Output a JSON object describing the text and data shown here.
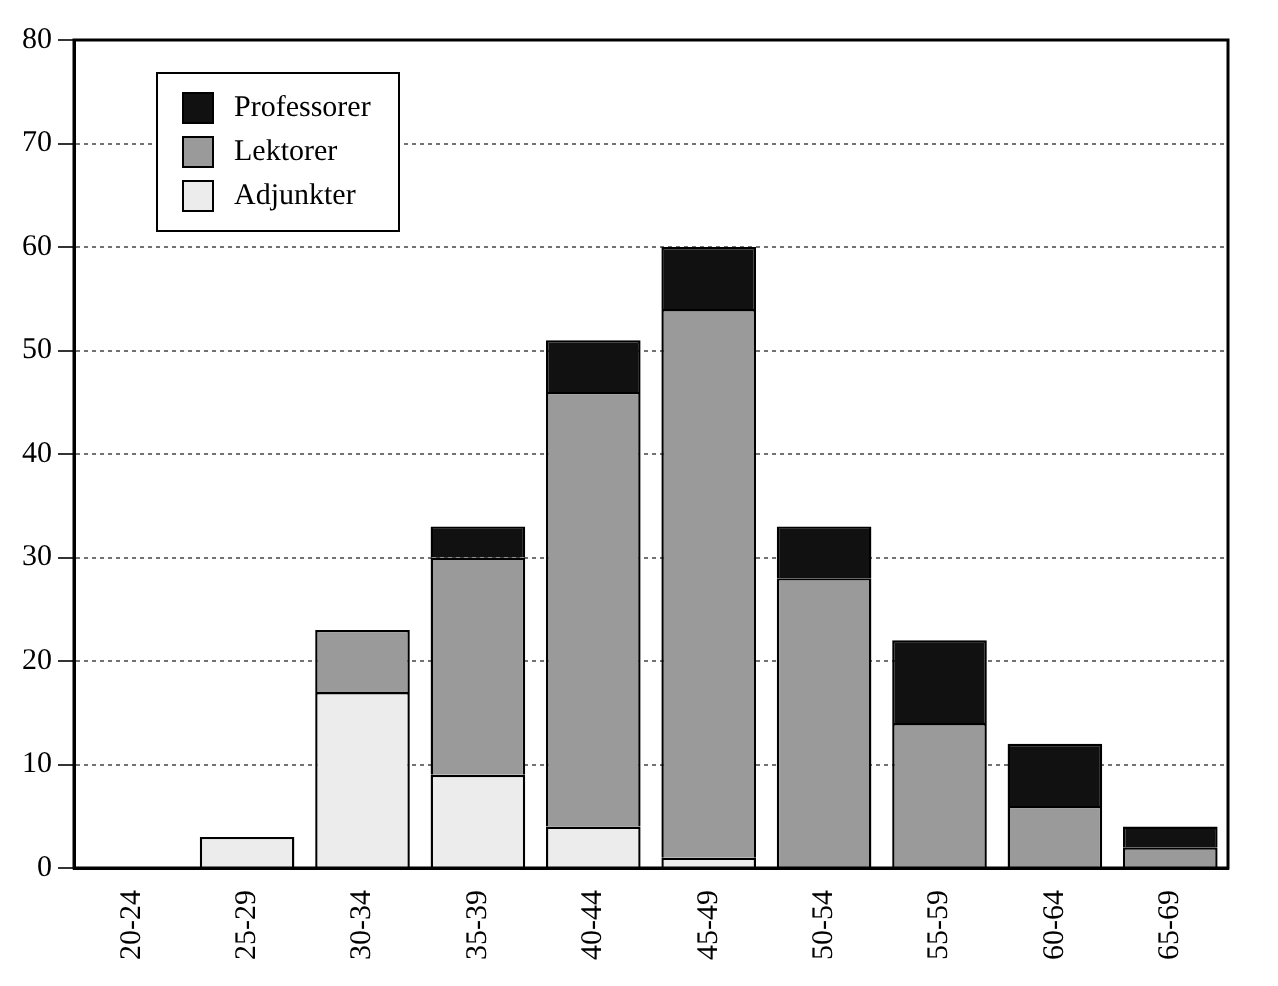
{
  "chart_data": {
    "type": "bar",
    "stacked": true,
    "categories": [
      "20-24",
      "25-29",
      "30-34",
      "35-39",
      "40-44",
      "45-49",
      "50-54",
      "55-59",
      "60-64",
      "65-69"
    ],
    "series": [
      {
        "name": "Adjunkter",
        "color": "#ececec",
        "values": [
          0,
          3,
          17,
          9,
          4,
          1,
          0,
          0,
          0,
          0
        ]
      },
      {
        "name": "Lektorer",
        "color": "#9a9a9a",
        "values": [
          0,
          0,
          6,
          21,
          42,
          53,
          28,
          14,
          6,
          2
        ]
      },
      {
        "name": "Professorer",
        "color": "#111111",
        "values": [
          0,
          0,
          0,
          3,
          5,
          6,
          5,
          8,
          6,
          2
        ]
      }
    ],
    "ylim": [
      0,
      80
    ],
    "yticks": [
      0,
      10,
      20,
      30,
      40,
      50,
      60,
      70,
      80
    ],
    "grid": "y",
    "legend": "top left"
  }
}
